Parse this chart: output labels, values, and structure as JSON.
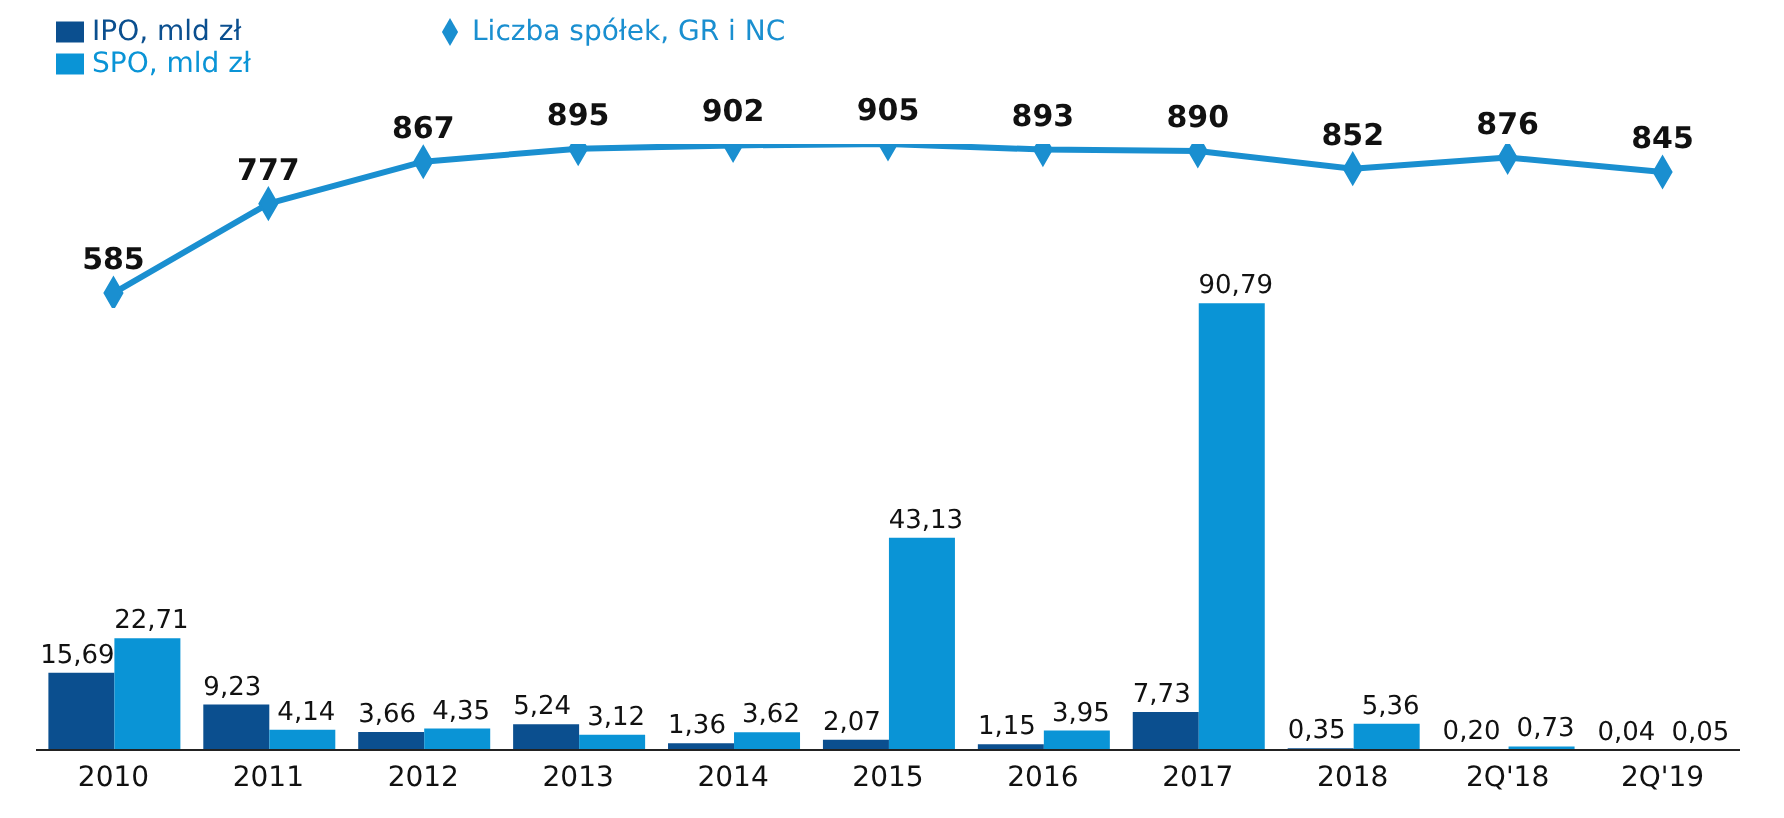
{
  "chart_data": [
    {
      "type": "bar",
      "categories": [
        "2010",
        "2011",
        "2012",
        "2013",
        "2014",
        "2015",
        "2016",
        "2017",
        "2018",
        "2Q'18",
        "2Q'19"
      ],
      "series": [
        {
          "name": "IPO, mld zł",
          "color": "#0b4f8f",
          "values": [
            15.69,
            9.23,
            3.66,
            5.24,
            1.36,
            2.07,
            1.15,
            7.73,
            0.35,
            0.2,
            0.04
          ],
          "value_labels": [
            "15,69",
            "9,23",
            "3,66",
            "5,24",
            "1,36",
            "2,07",
            "1,15",
            "7,73",
            "0,35",
            "0,20",
            "0,04"
          ]
        },
        {
          "name": "SPO, mld zł",
          "color": "#0a94d6",
          "values": [
            22.71,
            4.14,
            4.35,
            3.12,
            3.62,
            43.13,
            3.95,
            90.79,
            5.36,
            0.73,
            0.05
          ],
          "value_labels": [
            "22,71",
            "4,14",
            "4,35",
            "3,12",
            "3,62",
            "43,13",
            "3,95",
            "90,79",
            "5,36",
            "0,73",
            "0,05"
          ]
        }
      ],
      "legend": "top left"
    },
    {
      "type": "line",
      "categories": [
        null,
        null,
        null,
        null,
        null,
        null,
        null,
        null,
        null,
        null,
        null
      ],
      "series": [
        {
          "name": "Liczba spółek, GR i NC",
          "color": "#1a8fd0",
          "values": [
            585,
            777,
            867,
            895,
            902,
            905,
            893,
            890,
            852,
            876,
            845
          ],
          "value_labels": [
            "585",
            "777",
            "867",
            "895",
            "902",
            "905",
            "893",
            "890",
            "852",
            "876",
            "845"
          ]
        }
      ],
      "marker": "diamond",
      "legend": "top left"
    }
  ]
}
